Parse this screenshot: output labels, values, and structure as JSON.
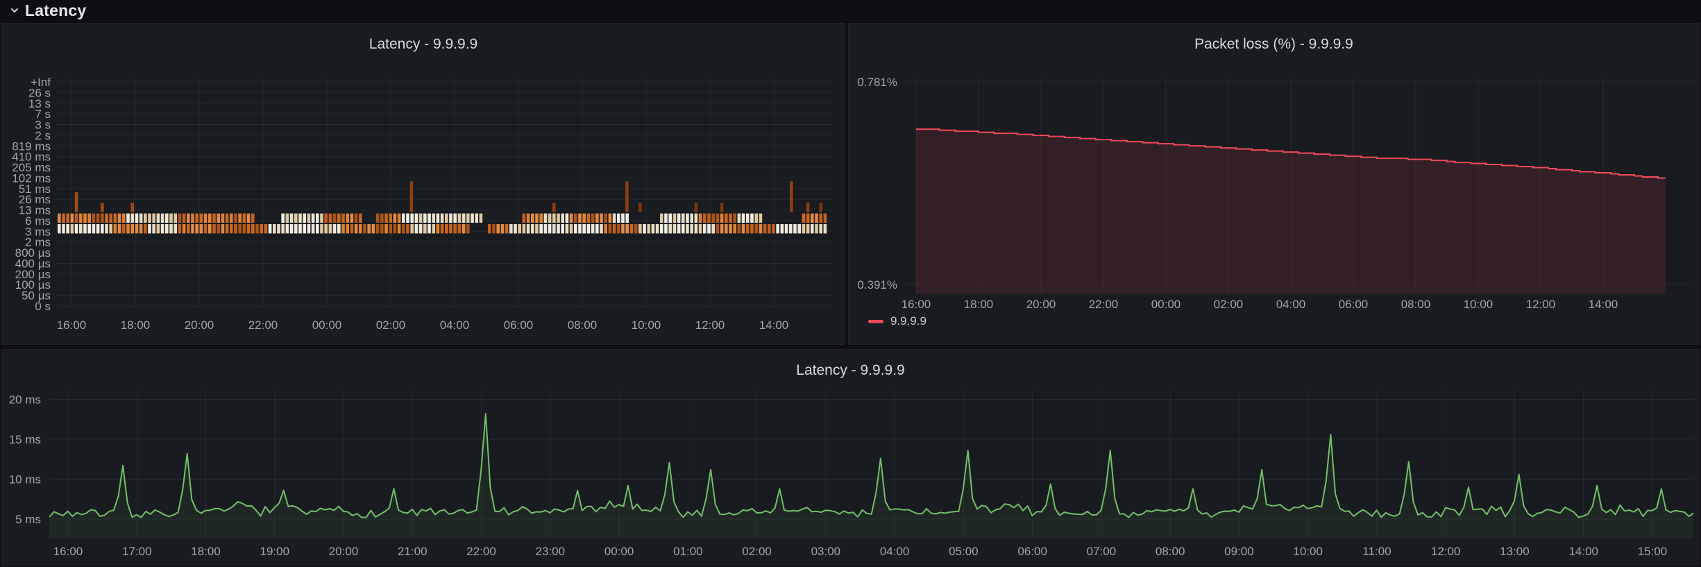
{
  "row_header": {
    "title": "Latency",
    "collapse_icon": "chevron-down-icon"
  },
  "chart_data": [
    {
      "type": "heatmap",
      "title": "Latency - 9.9.9.9",
      "x_tick_labels": [
        "16:00",
        "18:00",
        "20:00",
        "22:00",
        "00:00",
        "02:00",
        "04:00",
        "06:00",
        "08:00",
        "10:00",
        "12:00",
        "14:00"
      ],
      "x_tick_interval": "2h",
      "y_tick_labels": [
        "+Inf",
        "26 s",
        "13 s",
        "7 s",
        "3 s",
        "2 s",
        "819 ms",
        "410 ms",
        "205 ms",
        "102 ms",
        "51 ms",
        "26 ms",
        "13 ms",
        "6 ms",
        "3 ms",
        "2 ms",
        "800 µs",
        "400 µs",
        "200 µs",
        "100 µs",
        "50 µs",
        "0 s"
      ],
      "dense_bands": [
        {
          "bucket": "6-13 ms",
          "coverage": 0.72
        },
        {
          "bucket": "3-6 ms",
          "coverage": 0.97
        }
      ],
      "sparse_bands": [
        {
          "bucket": "13-26 ms",
          "density": 0.05
        },
        {
          "bucket": "26-51 ms",
          "density": 0.014
        }
      ],
      "high_outliers": [
        {
          "hour": 10.6,
          "bucket": "51-102 ms"
        },
        {
          "hour": 17.35,
          "bucket": "51-102 ms"
        },
        {
          "hour": 22.5,
          "bucket": "51-102 ms"
        }
      ],
      "palette_light": [
        "#F2EFE7",
        "#E9DFC9",
        "#E0C89F",
        "#EFE9DB"
      ],
      "palette_orange": [
        "#E0812F",
        "#CB671F",
        "#AD5418",
        "#E28B48",
        "#C2601C"
      ],
      "palette_outlier": [
        "#8F3E10",
        "#A3490F",
        "#7E350C"
      ],
      "grid": true,
      "seed": 42
    },
    {
      "type": "area",
      "title": "Packet loss (%) - 9.9.9.9",
      "line_mode": "stepped",
      "y_tick_labels": [
        "0.781%",
        "0.391%"
      ],
      "ylim": [
        0.391,
        0.781
      ],
      "x_tick_labels": [
        "16:00",
        "18:00",
        "20:00",
        "22:00",
        "00:00",
        "02:00",
        "04:00",
        "06:00",
        "08:00",
        "10:00",
        "12:00",
        "14:00"
      ],
      "x_tick_interval": "2h",
      "legend": {
        "position": "bottom-left",
        "entries": [
          "9.9.9.9"
        ]
      },
      "series": [
        {
          "name": "9.9.9.9",
          "color": "#F2495C",
          "fill_opacity": 0.13,
          "x_hours": [
            0,
            1,
            2,
            3,
            4,
            5,
            6,
            7,
            8,
            9,
            10,
            11,
            12,
            13,
            14,
            15,
            16,
            17,
            18,
            19,
            20,
            21,
            22,
            23
          ],
          "values": [
            0.691,
            0.688,
            0.684,
            0.681,
            0.677,
            0.673,
            0.669,
            0.665,
            0.661,
            0.657,
            0.653,
            0.649,
            0.645,
            0.641,
            0.637,
            0.634,
            0.632,
            0.628,
            0.623,
            0.619,
            0.615,
            0.61,
            0.605,
            0.6
          ]
        }
      ],
      "grid": true
    },
    {
      "type": "line",
      "title": "Latency - 9.9.9.9",
      "y_tick_labels": [
        "5 ms",
        "10 ms",
        "15 ms",
        "20 ms"
      ],
      "y_tick_values": [
        5,
        10,
        15,
        20
      ],
      "ylim": [
        2.5,
        21.5
      ],
      "x_tick_labels": [
        "16:00",
        "17:00",
        "18:00",
        "19:00",
        "20:00",
        "21:00",
        "22:00",
        "23:00",
        "00:00",
        "01:00",
        "02:00",
        "03:00",
        "04:00",
        "05:00",
        "06:00",
        "07:00",
        "08:00",
        "09:00",
        "10:00",
        "11:00",
        "12:00",
        "13:00",
        "14:00",
        "15:00"
      ],
      "x_tick_interval": "1h",
      "series": [
        {
          "name": "9.9.9.9",
          "color": "#73BF69",
          "fill_opacity": 0.08,
          "base_ms": 5.35,
          "noise_ms": 1.0,
          "points_per_hour": 15,
          "seed": 7,
          "spikes_hour_ms": [
            [
              0.8,
              11.7
            ],
            [
              1.75,
              13.2
            ],
            [
              3.1,
              8.6
            ],
            [
              4.75,
              8.8
            ],
            [
              6.05,
              18.2
            ],
            [
              7.4,
              8.6
            ],
            [
              8.1,
              9.2
            ],
            [
              8.7,
              12.1
            ],
            [
              9.35,
              11.2
            ],
            [
              10.3,
              8.8
            ],
            [
              11.8,
              12.6
            ],
            [
              13.05,
              13.6
            ],
            [
              14.25,
              9.4
            ],
            [
              15.1,
              13.6
            ],
            [
              16.3,
              8.8
            ],
            [
              17.35,
              11.2
            ],
            [
              18.3,
              15.6
            ],
            [
              19.45,
              12.2
            ],
            [
              20.3,
              9.0
            ],
            [
              21.05,
              10.6
            ],
            [
              22.2,
              9.2
            ],
            [
              23.1,
              8.8
            ]
          ]
        }
      ],
      "grid": true
    }
  ]
}
